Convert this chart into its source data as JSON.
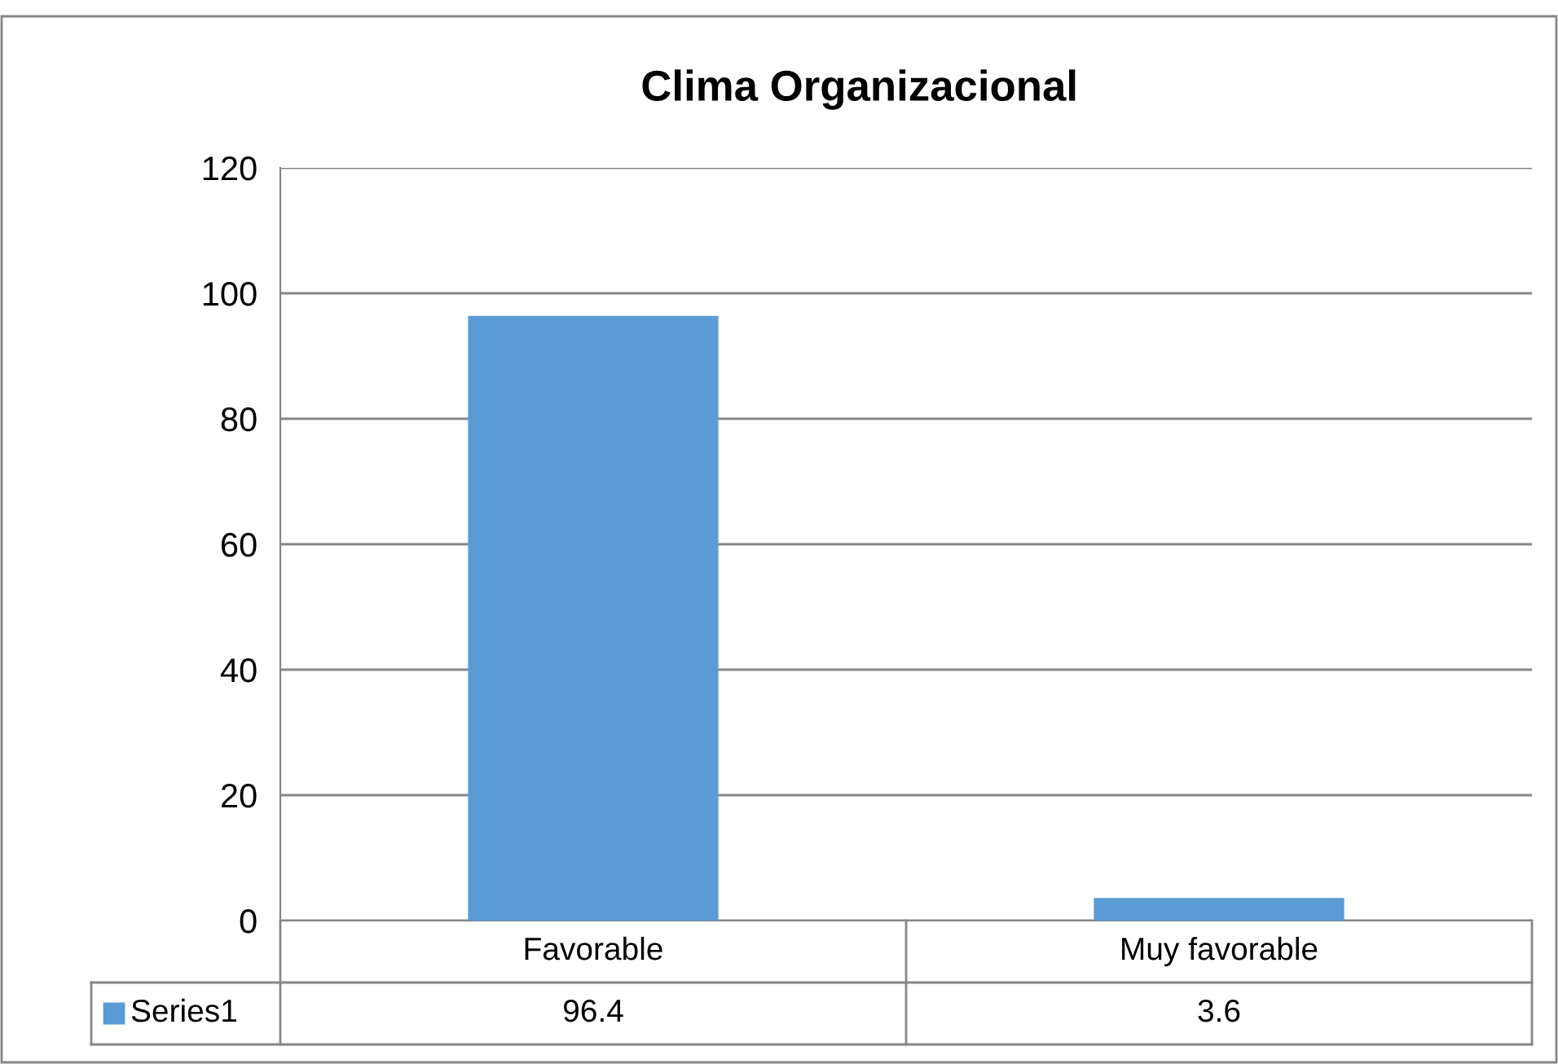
{
  "chart_data": {
    "type": "bar",
    "title": "Clima Organizacional",
    "categories": [
      "Favorable",
      "Muy favorable"
    ],
    "series": [
      {
        "name": "Series1",
        "color": "#5b9bd5",
        "values": [
          96.4,
          3.6
        ]
      }
    ],
    "ylim": [
      0,
      120
    ],
    "yticks": [
      0,
      20,
      40,
      60,
      80,
      100,
      120
    ],
    "grid": "y",
    "data_labels": true
  }
}
